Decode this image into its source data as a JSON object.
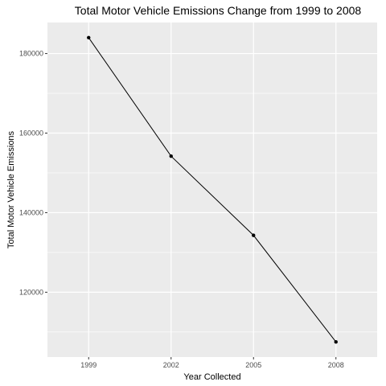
{
  "chart_data": {
    "type": "line",
    "title": "Total Motor Vehicle Emissions Change from 1999 to 2008",
    "xlabel": "Year Collected",
    "ylabel": "Total Motor Vehicle Emissions",
    "x": [
      1999,
      2002,
      2005,
      2008
    ],
    "series": [
      {
        "values": [
          184000,
          154200,
          134300,
          107500
        ]
      }
    ],
    "xlim": [
      1997.5,
      2009.5
    ],
    "ylim": [
      103700,
      187800
    ],
    "x_ticks": [
      1999,
      2002,
      2005,
      2008
    ],
    "x_tick_labels": [
      "1999",
      "2002",
      "2005",
      "2008"
    ],
    "y_ticks": [
      120000,
      140000,
      160000,
      180000
    ],
    "y_tick_labels": [
      "120000",
      "140000",
      "160000",
      "180000"
    ],
    "y_minor_ticks": [
      110000,
      130000,
      150000,
      170000
    ],
    "grid": true,
    "panel_color": "#ebebeb",
    "grid_color": "#ffffff",
    "line_color": "#000000",
    "point_color": "#000000"
  }
}
